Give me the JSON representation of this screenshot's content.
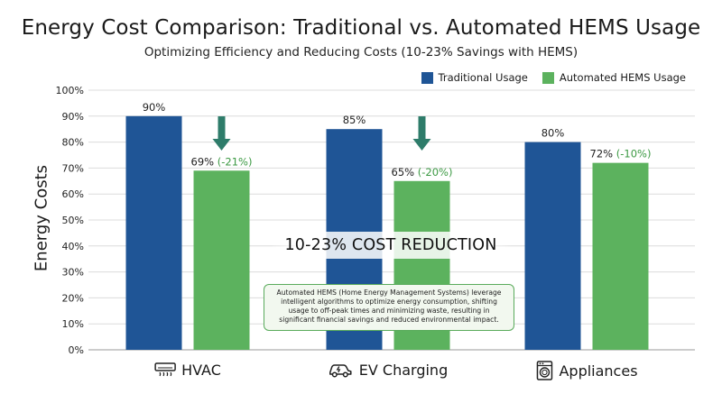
{
  "title": "Energy Cost Comparison: Traditional vs. Automated HEMS Usage",
  "subtitle": "Optimizing Efficiency and Reducing Costs (10-23% Savings with HEMS)",
  "legend": {
    "traditional": "Traditional Usage",
    "automated": "Automated HEMS Usage"
  },
  "colors": {
    "traditional": "#1f5596",
    "automated": "#5cb25e",
    "reduction_text": "#3d9a44",
    "arrow": "#2e7c6a"
  },
  "banner": "10-23% COST REDUCTION",
  "note": "Automated HEMS (Home Energy Management Systems) leverage intelligent algorithms to optimize energy consumption, shifting usage to off-peak times and minimizing waste, resulting in significant financial savings and reduced environmental impact.",
  "icons": [
    "hvac-icon",
    "ev-charging-icon",
    "appliances-icon"
  ],
  "chart_data": {
    "type": "bar",
    "title": "Energy Cost Comparison: Traditional vs. Automated HEMS Usage",
    "subtitle": "Optimizing Efficiency and Reducing Costs (10-23% Savings with HEMS)",
    "xlabel": "",
    "ylabel": "Energy Costs",
    "ylim": [
      0,
      100
    ],
    "yticks": [
      "0%",
      "10%",
      "20%",
      "30%",
      "40%",
      "50%",
      "60%",
      "70%",
      "80%",
      "90%",
      "100%"
    ],
    "categories": [
      "HVAC",
      "EV Charging",
      "Appliances"
    ],
    "series": [
      {
        "name": "Traditional Usage",
        "values": [
          90,
          85,
          80
        ],
        "labels": [
          "90%",
          "85%",
          "80%"
        ]
      },
      {
        "name": "Automated HEMS Usage",
        "values": [
          69,
          65,
          72
        ],
        "labels": [
          "69%",
          "65%",
          "72%"
        ],
        "changes": [
          "(-21%)",
          "(-20%)",
          "(-10%)"
        ]
      }
    ],
    "grid": true,
    "legend": "top-right",
    "reduction_arrows": [
      true,
      true,
      false
    ]
  }
}
